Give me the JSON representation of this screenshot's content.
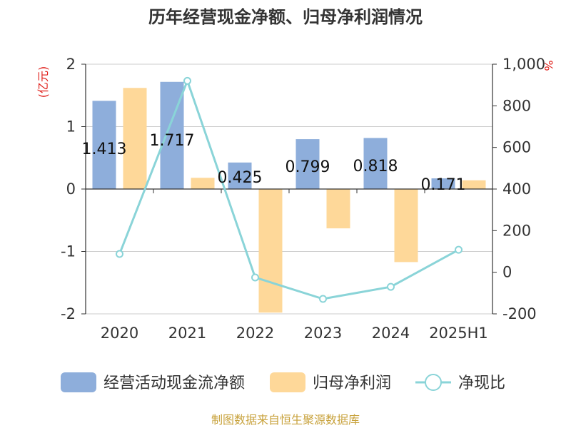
{
  "chart_data": {
    "type": "bar",
    "title": "历年经营现金净额、归母净利润情况",
    "categories": [
      "2020",
      "2021",
      "2022",
      "2023",
      "2024",
      "2025H1"
    ],
    "y_left": {
      "unit": "(亿元)",
      "ylim": [
        -2,
        2
      ],
      "ticks": [
        "-2",
        "-1",
        "0",
        "1",
        "2"
      ]
    },
    "y_right": {
      "unit": "%",
      "ylim": [
        -200,
        1000
      ],
      "ticks": [
        "-200",
        "0",
        "200",
        "400",
        "600",
        "800",
        "1,000"
      ]
    },
    "series": [
      {
        "name": "经营活动现金流净额",
        "kind": "bar",
        "axis": "left",
        "color": "#8eaedb",
        "values": [
          1.413,
          1.717,
          0.425,
          0.799,
          0.818,
          0.171
        ],
        "labels": [
          "1.413",
          "1.717",
          "0.425",
          "0.799",
          "0.818",
          "0.171"
        ]
      },
      {
        "name": "归母净利润",
        "kind": "bar",
        "axis": "left",
        "color": "#fed899",
        "values": [
          1.62,
          0.18,
          -1.98,
          -0.63,
          -1.17,
          0.14
        ]
      },
      {
        "name": "净现比",
        "kind": "line",
        "axis": "right",
        "color": "#8ad4d8",
        "values": [
          88,
          920,
          -25,
          -128,
          -70,
          108
        ]
      }
    ],
    "grid": true,
    "legend": "bottom",
    "source": "制图数据来自恒生聚源数据库"
  }
}
